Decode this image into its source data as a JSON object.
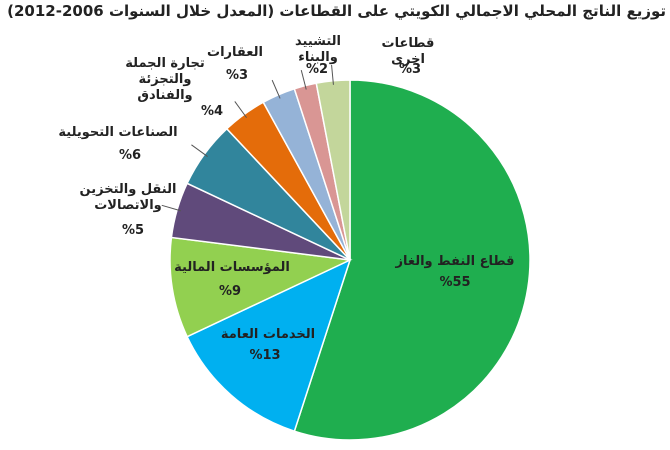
{
  "chart_data": {
    "type": "pie",
    "title": "توزيع الناتج المحلي الاجمالي الكويتي على القطاعات (المعدل خلال السنوات 2006-2012)",
    "categories": [
      "قطاع النفط والغاز",
      "الخدمات العامة",
      "المؤسسات المالية",
      "النقل والتخزين والاتصالات",
      "الصناعات التحويلية",
      "تجارة الجملة والتجزئة والفنادق",
      "العقارات",
      "التشييد والبناء",
      "قطاعات اخرى"
    ],
    "values": [
      55,
      13,
      9,
      5,
      6,
      4,
      3,
      2,
      3
    ],
    "value_labels": [
      "%55",
      "%13",
      "%9",
      "%5",
      "%6",
      "%4",
      "%3",
      "%2",
      "%3"
    ],
    "colors": [
      "#1fae4f",
      "#00b0f0",
      "#92d050",
      "#604a7b",
      "#31859c",
      "#e46c0a",
      "#95b3d7",
      "#d99694",
      "#c3d69b"
    ]
  }
}
